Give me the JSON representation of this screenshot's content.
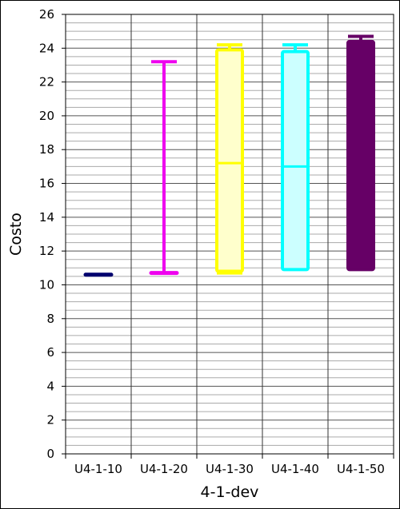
{
  "chart_data": {
    "type": "box",
    "title": "",
    "xlabel": "4-1-dev",
    "ylabel": "Costo",
    "ylim": [
      0,
      26
    ],
    "yticks": [
      0,
      2,
      4,
      6,
      8,
      10,
      12,
      14,
      16,
      18,
      20,
      22,
      24,
      26
    ],
    "ytick_labels": [
      "0",
      "2",
      "4",
      "6",
      "8",
      "10",
      "12",
      "14",
      "16",
      "18",
      "20",
      "22",
      "24",
      "26"
    ],
    "y_minor_step": 0.5,
    "grid": true,
    "categories": [
      "U4-1-10",
      "U4-1-20",
      "U4-1-30",
      "U4-1-40",
      "U4-1-50"
    ],
    "boxes": [
      {
        "category": "U4-1-10",
        "min": 10.6,
        "q1": 10.6,
        "median": 10.6,
        "q3": 10.6,
        "max": 10.6,
        "edge_color": "#00006e",
        "fill_color": "#00006e"
      },
      {
        "category": "U4-1-20",
        "min": 10.7,
        "q1": 10.7,
        "median": 10.7,
        "q3": 10.7,
        "max": 23.2,
        "edge_color": "#ee00ee",
        "fill_color": "#ee00ee"
      },
      {
        "category": "U4-1-30",
        "min": 10.7,
        "q1": 10.8,
        "median": 17.2,
        "q3": 23.9,
        "max": 24.2,
        "edge_color": "#ffff00",
        "fill_color": "#ffffcc"
      },
      {
        "category": "U4-1-40",
        "min": 10.9,
        "q1": 10.9,
        "median": 17.0,
        "q3": 23.8,
        "max": 24.2,
        "edge_color": "#00ffff",
        "fill_color": "#ccffff"
      },
      {
        "category": "U4-1-50",
        "min": 10.9,
        "q1": 10.9,
        "median": 10.9,
        "q3": 24.4,
        "max": 24.7,
        "edge_color": "#660066",
        "fill_color": "#660066"
      }
    ]
  }
}
